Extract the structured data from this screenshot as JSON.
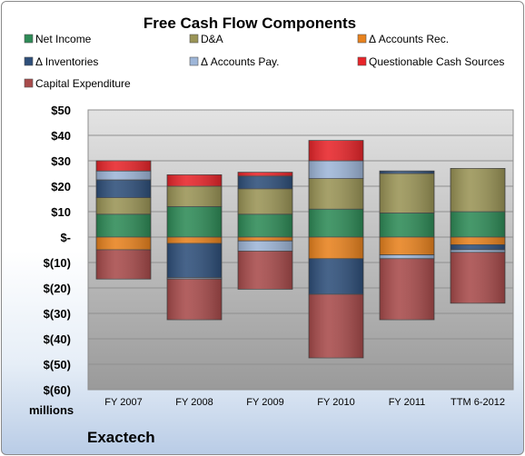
{
  "chart_data": {
    "type": "bar",
    "stacked": true,
    "title": "Free Cash Flow Components",
    "units_label": "millions",
    "company": "Exactech",
    "categories": [
      "FY 2007",
      "FY 2008",
      "FY 2009",
      "FY 2010",
      "FY 2011",
      "TTM 6-2012"
    ],
    "y_tick_labels": [
      "$50",
      "$40",
      "$30",
      "$20",
      "$10",
      "$-",
      "$(10)",
      "$(20)",
      "$(30)",
      "$(40)",
      "$(50)",
      "$(60)"
    ],
    "ylim": [
      -60,
      50
    ],
    "grid": true,
    "legend_position": "top",
    "series": [
      {
        "name": "Net Income",
        "color": "#2e8b57",
        "values": [
          9,
          12,
          9,
          11,
          9.5,
          10
        ]
      },
      {
        "name": "D&A",
        "color": "#9a9456",
        "values": [
          6.5,
          8,
          10,
          12,
          15.5,
          17
        ]
      },
      {
        "name": "Δ Accounts Rec.",
        "color": "#e8821e",
        "values": [
          -5,
          -2.5,
          -1.5,
          -8.5,
          -7,
          -3
        ]
      },
      {
        "name": "Δ Inventories",
        "color": "#2e4f7a",
        "values": [
          7,
          -13.5,
          5,
          -14,
          1,
          -2
        ]
      },
      {
        "name": "Δ Accounts Pay.",
        "color": "#9eb6d8",
        "values": [
          3.5,
          -0.5,
          -4,
          7,
          -1.5,
          -1
        ]
      },
      {
        "name": "Questionable Cash Sources",
        "color": "#e8252a",
        "values": [
          4,
          4.5,
          1.5,
          8,
          0,
          0
        ]
      },
      {
        "name": "Capital Expenditure",
        "color": "#a84b4b",
        "values": [
          -11.5,
          -16,
          -15,
          -25,
          -24,
          -20
        ]
      }
    ]
  }
}
